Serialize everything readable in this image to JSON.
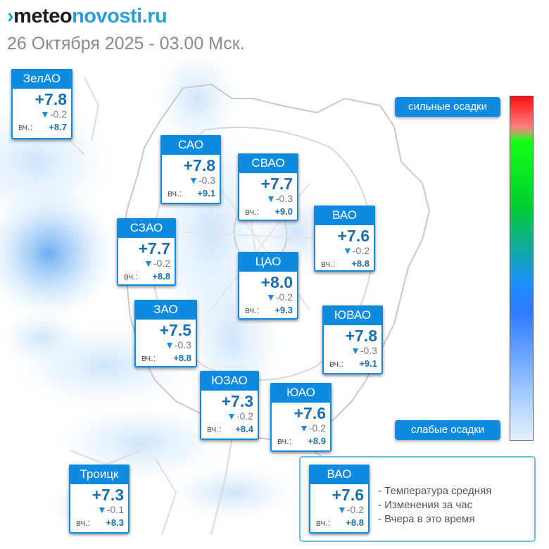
{
  "header": {
    "logo_mark": "›",
    "logo_part1": "meteo",
    "logo_part2": "novosti.ru",
    "date": "26 Октября 2025 - 03.00 Мск."
  },
  "scale": {
    "top_label": "сильные осадки",
    "bottom_label": "слабые осадки"
  },
  "districts": [
    {
      "name": "ЗелАО",
      "temp": "+7.8",
      "change": "-0.2",
      "yesterday_label": "вч.:",
      "yesterday": "+8.7"
    },
    {
      "name": "САО",
      "temp": "+7.8",
      "change": "-0.3",
      "yesterday_label": "вч.:",
      "yesterday": "+9.1"
    },
    {
      "name": "СВАО",
      "temp": "+7.7",
      "change": "-0.3",
      "yesterday_label": "вч.:",
      "yesterday": "+9.0"
    },
    {
      "name": "ВАО",
      "temp": "+7.6",
      "change": "-0.2",
      "yesterday_label": "вч.:",
      "yesterday": "+8.8"
    },
    {
      "name": "СЗАО",
      "temp": "+7.7",
      "change": "-0.2",
      "yesterday_label": "вч.:",
      "yesterday": "+8.8"
    },
    {
      "name": "ЦАО",
      "temp": "+8.0",
      "change": "-0.2",
      "yesterday_label": "вч.:",
      "yesterday": "+9.3"
    },
    {
      "name": "ЗАО",
      "temp": "+7.5",
      "change": "-0.3",
      "yesterday_label": "вч.:",
      "yesterday": "+8.8"
    },
    {
      "name": "ЮВАО",
      "temp": "+7.8",
      "change": "-0.3",
      "yesterday_label": "вч.:",
      "yesterday": "+9.1"
    },
    {
      "name": "ЮЗАО",
      "temp": "+7.3",
      "change": "-0.2",
      "yesterday_label": "вч.:",
      "yesterday": "+8.4"
    },
    {
      "name": "ЮАО",
      "temp": "+7.6",
      "change": "-0.2",
      "yesterday_label": "вч.:",
      "yesterday": "+8.9"
    },
    {
      "name": "Троицк",
      "temp": "+7.3",
      "change": "-0.1",
      "yesterday_label": "вч.:",
      "yesterday": "+8.3"
    }
  ],
  "legend": {
    "card": {
      "name": "ВАО",
      "temp": "+7.6",
      "change": "-0.2",
      "yesterday_label": "вч.:",
      "yesterday": "+8.8"
    },
    "line1": "- Температура средняя",
    "line2": "- Изменения за час",
    "line3": "- Вчера в это время"
  },
  "colors": {
    "card_blue": "#0e8ae0",
    "temp_text": "#1b6fae",
    "precip_light": "#cfe6fb",
    "precip_medium": "#5aa6ef"
  }
}
